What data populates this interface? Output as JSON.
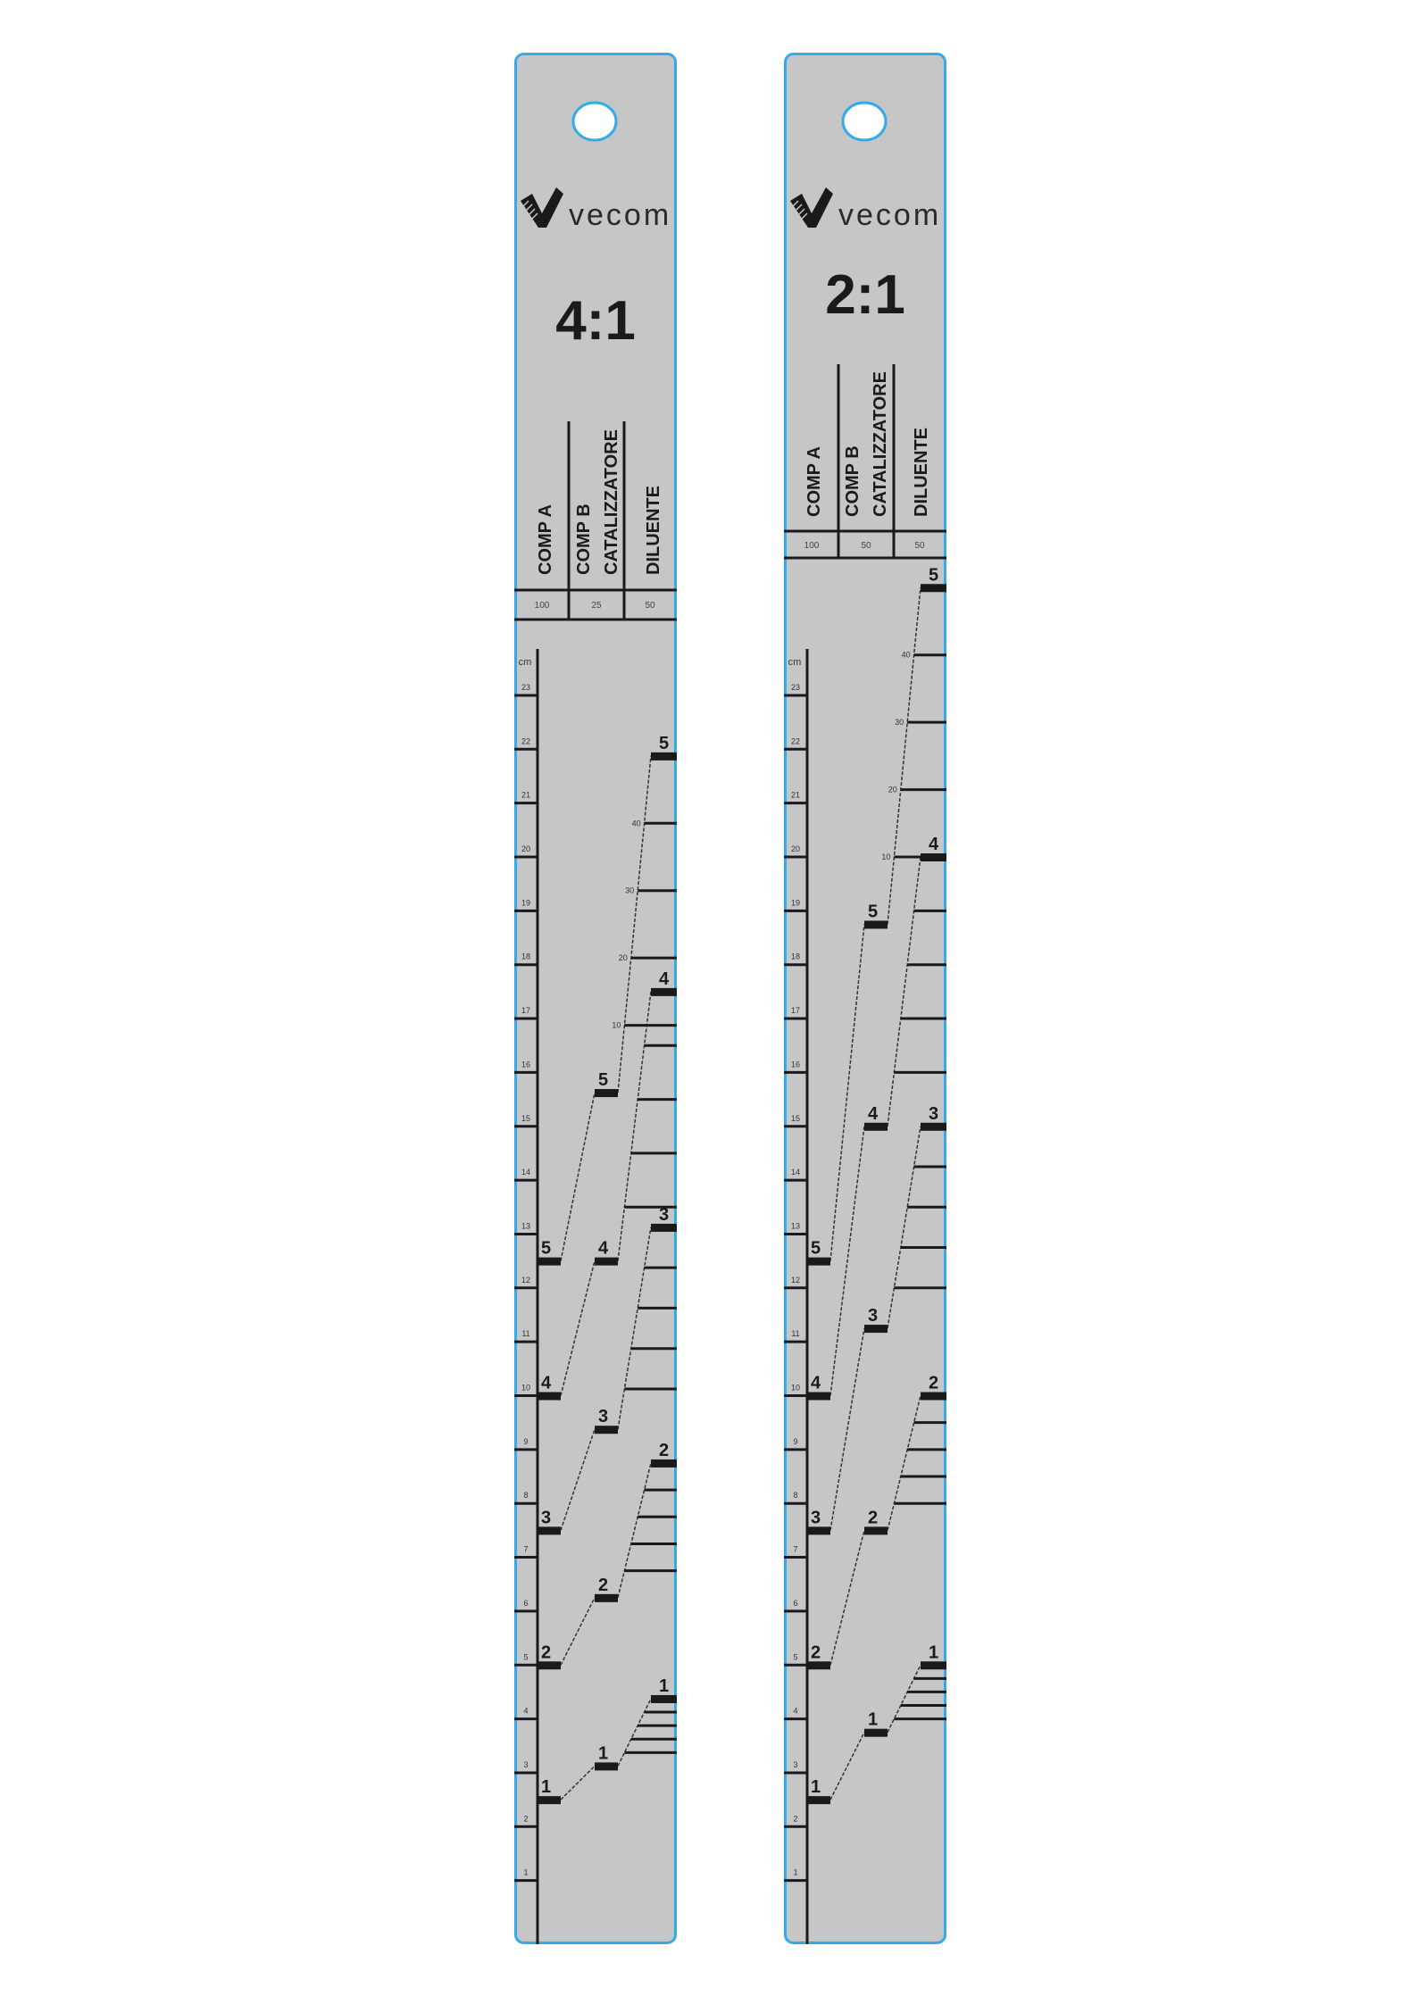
{
  "rulers": [
    {
      "ratio": "4:1",
      "brand": "vecom",
      "headers": {
        "comp_a": "COMP A",
        "comp_b_line1": "COMP B",
        "comp_b_line2": "CATALIZZATORE",
        "diluent": "DILUENTE"
      },
      "header_values": {
        "comp_a": "100",
        "comp_b": "25",
        "diluent": "50"
      },
      "scale": {
        "unit": "cm",
        "min": 1,
        "max": 23
      },
      "mark_labels": [
        "1",
        "2",
        "3",
        "4",
        "5"
      ],
      "comp_a_marks": [
        2.5,
        5,
        7.5,
        10,
        12.5
      ],
      "comp_b_marks": [
        3.125,
        6.25,
        9.375,
        12.5,
        15.625
      ],
      "diluent_marks": [
        4.375,
        8.75,
        13.125,
        17.5,
        21.875
      ],
      "dilution_steps": [
        "10",
        "20",
        "30",
        "40"
      ]
    },
    {
      "ratio": "2:1",
      "brand": "vecom",
      "headers": {
        "comp_a": "COMP A",
        "comp_b_line1": "COMP B",
        "comp_b_line2": "CATALIZZATORE",
        "diluent": "DILUENTE"
      },
      "header_values": {
        "comp_a": "100",
        "comp_b": "50",
        "diluent": "50"
      },
      "scale": {
        "unit": "cm",
        "min": 1,
        "max": 23
      },
      "mark_labels": [
        "1",
        "2",
        "3",
        "4",
        "5"
      ],
      "comp_a_marks": [
        2.5,
        5,
        7.5,
        10,
        12.5
      ],
      "comp_b_marks": [
        3.75,
        7.5,
        11.25,
        15,
        18.75
      ],
      "diluent_marks": [
        5,
        10,
        15,
        20,
        25
      ],
      "dilution_steps": [
        "10",
        "20",
        "30",
        "40"
      ]
    }
  ],
  "colors": {
    "ruler_fill": "#c6c6c6",
    "ruler_edge": "#33aaea",
    "ink": "#1a1a1a"
  }
}
